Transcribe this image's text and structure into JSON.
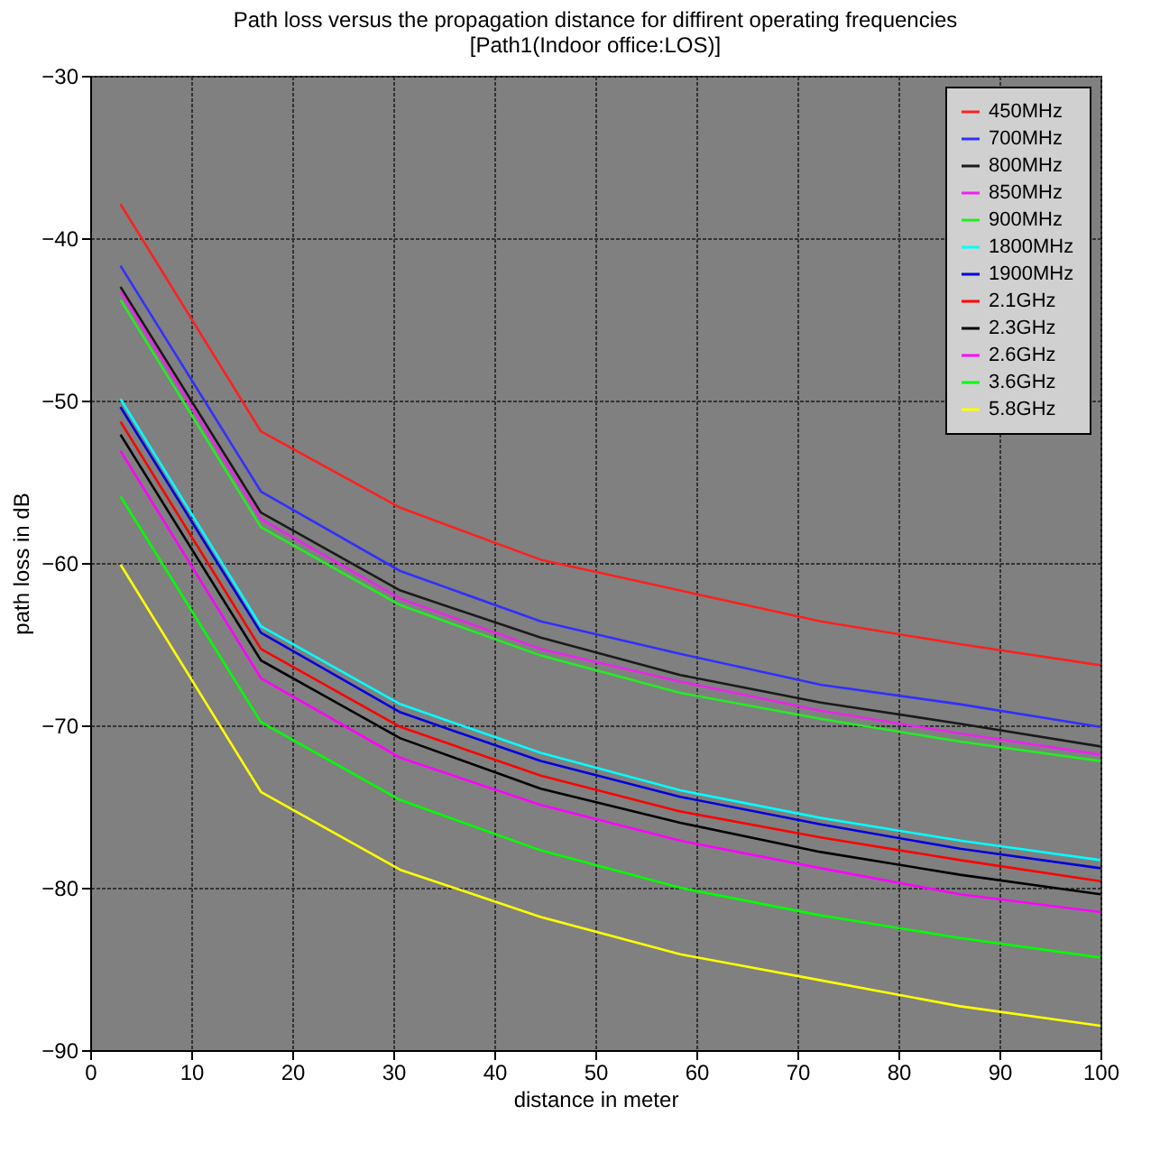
{
  "chart_data": {
    "type": "line",
    "title": "Path loss versus the propagation distance for diffirent operating frequencies",
    "subtitle": "[Path1(Indoor office:LOS)]",
    "xlabel": "distance in meter",
    "ylabel": "path loss in dB",
    "x": [
      3,
      16.9,
      30.7,
      44.6,
      58.4,
      72.3,
      86.1,
      100
    ],
    "series": [
      {
        "name": "450MHz",
        "color": "#ff2020",
        "values": [
          -37.9,
          -51.9,
          -56.6,
          -59.8,
          -61.7,
          -63.6,
          -65.0,
          -66.3
        ]
      },
      {
        "name": "700MHz",
        "color": "#3030ff",
        "values": [
          -41.7,
          -55.6,
          -60.5,
          -63.6,
          -65.6,
          -67.5,
          -68.7,
          -70.1
        ]
      },
      {
        "name": "800MHz",
        "color": "#1a1a1a",
        "values": [
          -43.0,
          -56.9,
          -61.7,
          -64.6,
          -66.9,
          -68.6,
          -69.9,
          -71.3
        ]
      },
      {
        "name": "850MHz",
        "color": "#ee22ee",
        "values": [
          -43.3,
          -57.3,
          -62.2,
          -65.3,
          -67.3,
          -69.1,
          -70.5,
          -71.8
        ]
      },
      {
        "name": "900MHz",
        "color": "#22ee22",
        "values": [
          -43.8,
          -57.8,
          -62.6,
          -65.7,
          -68.0,
          -69.6,
          -71.0,
          -72.2
        ]
      },
      {
        "name": "1800MHz",
        "color": "#00ffff",
        "values": [
          -49.9,
          -63.9,
          -68.7,
          -71.7,
          -74.0,
          -75.7,
          -77.1,
          -78.3
        ]
      },
      {
        "name": "1900MHz",
        "color": "#0000dd",
        "values": [
          -50.4,
          -64.3,
          -69.2,
          -72.2,
          -74.4,
          -76.1,
          -77.6,
          -78.8
        ]
      },
      {
        "name": "2.1GHz",
        "color": "#ff0000",
        "values": [
          -51.3,
          -65.3,
          -70.1,
          -73.1,
          -75.3,
          -76.9,
          -78.3,
          -79.6
        ]
      },
      {
        "name": "2.3GHz",
        "color": "#000000",
        "values": [
          -52.1,
          -66.0,
          -70.8,
          -73.9,
          -76.0,
          -77.8,
          -79.2,
          -80.4
        ]
      },
      {
        "name": "2.6GHz",
        "color": "#ff00ff",
        "values": [
          -53.1,
          -67.1,
          -72.0,
          -74.9,
          -77.1,
          -78.8,
          -80.4,
          -81.5
        ]
      },
      {
        "name": "3.6GHz",
        "color": "#00ff00",
        "values": [
          -55.9,
          -69.8,
          -74.6,
          -77.7,
          -80.0,
          -81.7,
          -83.1,
          -84.3
        ]
      },
      {
        "name": "5.8GHz",
        "color": "#ffff00",
        "values": [
          -60.1,
          -74.1,
          -78.9,
          -81.8,
          -84.1,
          -85.7,
          -87.3,
          -88.5
        ]
      }
    ],
    "xlim": [
      0,
      100
    ],
    "xticks": [
      0,
      10,
      20,
      30,
      40,
      50,
      60,
      70,
      80,
      90,
      100
    ],
    "ylim": [
      -90,
      -30
    ],
    "yticks": [
      -90,
      -80,
      -70,
      -60,
      -50,
      -40,
      -30
    ],
    "grid": true,
    "legend": "top right",
    "marker": "none",
    "line_style": "solid"
  }
}
